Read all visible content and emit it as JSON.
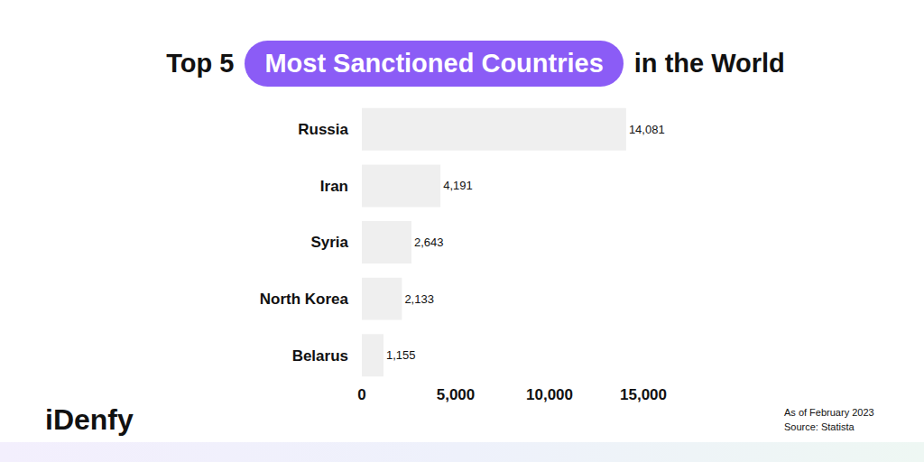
{
  "chart_data": {
    "type": "bar",
    "orientation": "horizontal",
    "title": [
      "Top 5",
      "Most Sanctioned Countries",
      "in the World"
    ],
    "categories": [
      "Russia",
      "Iran",
      "Syria",
      "North Korea",
      "Belarus"
    ],
    "values": [
      14081,
      4191,
      2643,
      2133,
      1155
    ],
    "value_labels": [
      "14,081",
      "4,191",
      "2,643",
      "2,133",
      "1,155"
    ],
    "data_labels": true,
    "color": "#efefef",
    "xlim": [
      0,
      15000
    ],
    "xticks": [
      0,
      {
        "value": 5000,
        "label": "5,000"
      },
      {
        "value": 10000,
        "label": "10,000"
      },
      {
        "value": 15000,
        "label": "15,000"
      }
    ],
    "grid": false,
    "annotations": [
      "iDenfy",
      "As of February 2023",
      "Source: Statista"
    ]
  }
}
